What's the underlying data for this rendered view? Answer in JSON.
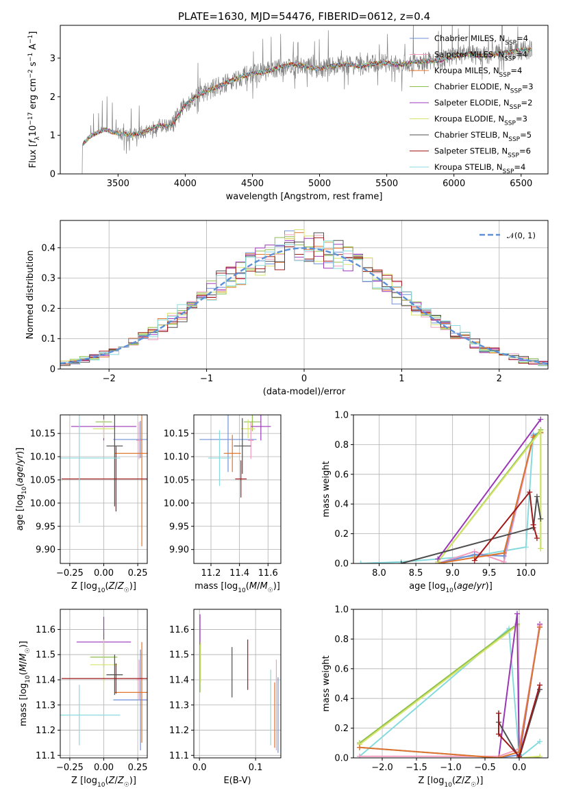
{
  "figure": {
    "title": "PLATE=1630, MJD=54476, FIBERID=0612, z=0.4"
  },
  "colors": {
    "chabrier_miles": "#6f8fd8",
    "salpeter_miles": "#f19bbf",
    "kroupa_miles": "#e0742a",
    "chabrier_elodie": "#8cbe4a",
    "salpeter_elodie": "#9b35b8",
    "kroupa_elodie": "#d6e36b",
    "chabrier_stelib": "#4d4d4d",
    "salpeter_stelib": "#a01818",
    "kroupa_stelib": "#86dadd",
    "data": "#808080",
    "gauss": "#5b8fd6"
  },
  "chart_data": [
    {
      "id": "spectrum",
      "type": "line",
      "title": "PLATE=1630, MJD=54476, FIBERID=0612, z=0.4",
      "xlabel": "wavelength [Angstrom, rest frame]",
      "ylabel": "Flux [f_λ 10^-17 erg cm^-2 s^-1 A^-1]",
      "xlim": [
        3070,
        6700
      ],
      "ylim": [
        0,
        3.85
      ],
      "xticks": [
        3500,
        4000,
        4500,
        5000,
        5500,
        6000,
        6500
      ],
      "yticks": [
        0,
        1,
        2,
        3
      ],
      "grid": false,
      "legend_position": "top-right",
      "continuum_x": [
        3230,
        3300,
        3400,
        3500,
        3600,
        3700,
        3800,
        3900,
        4000,
        4100,
        4200,
        4300,
        4400,
        4500,
        4600,
        4700,
        4800,
        4900,
        5000,
        5100,
        5200,
        5300,
        5400,
        5500,
        5600,
        5700,
        5800,
        5900,
        6000,
        6100,
        6200,
        6300,
        6400,
        6500,
        6580
      ],
      "continuum_y": [
        0.75,
        1.0,
        1.15,
        1.05,
        1.0,
        1.1,
        1.25,
        1.25,
        1.8,
        2.05,
        2.2,
        2.35,
        2.5,
        2.6,
        2.65,
        2.75,
        2.85,
        2.78,
        2.72,
        2.8,
        2.85,
        2.78,
        2.85,
        2.88,
        2.82,
        2.9,
        2.92,
        2.95,
        3.05,
        3.12,
        3.05,
        3.1,
        3.15,
        3.2,
        3.22
      ],
      "series": [
        {
          "name": "Chabrier MILES, N_SSP=4",
          "base": "Chabrier MILES, N",
          "sub": "SSP",
          "suffix": "=4",
          "color_key": "chabrier_miles"
        },
        {
          "name": "Salpeter MILES, N_SSP=4",
          "base": "Salpeter MILES, N",
          "sub": "SSP",
          "suffix": "=4",
          "color_key": "salpeter_miles"
        },
        {
          "name": "Kroupa MILES, N_SSP=4",
          "base": "Kroupa MILES, N",
          "sub": "SSP",
          "suffix": "=4",
          "color_key": "kroupa_miles"
        },
        {
          "name": "Chabrier ELODIE, N_SSP=3",
          "base": "Chabrier ELODIE, N",
          "sub": "SSP",
          "suffix": "=3",
          "color_key": "chabrier_elodie"
        },
        {
          "name": "Salpeter ELODIE, N_SSP=2",
          "base": "Salpeter ELODIE, N",
          "sub": "SSP",
          "suffix": "=2",
          "color_key": "salpeter_elodie"
        },
        {
          "name": "Kroupa ELODIE, N_SSP=3",
          "base": "Kroupa ELODIE, N",
          "sub": "SSP",
          "suffix": "=3",
          "color_key": "kroupa_elodie"
        },
        {
          "name": "Chabrier STELIB, N_SSP=5",
          "base": "Chabrier STELIB, N",
          "sub": "SSP",
          "suffix": "=5",
          "color_key": "chabrier_stelib"
        },
        {
          "name": "Salpeter STELIB, N_SSP=6",
          "base": "Salpeter STELIB, N",
          "sub": "SSP",
          "suffix": "=6",
          "color_key": "salpeter_stelib"
        },
        {
          "name": "Kroupa STELIB, N_SSP=4",
          "base": "Kroupa STELIB, N",
          "sub": "SSP",
          "suffix": "=4",
          "color_key": "kroupa_stelib"
        }
      ]
    },
    {
      "id": "residuals",
      "type": "bar",
      "xlabel": "(data-model)/error",
      "ylabel": "Normed distribution",
      "xlim": [
        -2.5,
        2.5
      ],
      "ylim": [
        0,
        0.49
      ],
      "xticks": [
        -2,
        -1,
        0,
        1,
        2
      ],
      "yticks": [
        0.0,
        0.1,
        0.2,
        0.3,
        0.4
      ],
      "grid": true,
      "legend_position": "top-right",
      "legend_label": "𝒩(0, 1)",
      "bin_width": 0.1,
      "bins_start": -2.5,
      "gauss_mean": 0,
      "gauss_sigma": 1
    },
    {
      "id": "age_vs_Z",
      "type": "scatter",
      "xlabel": "Z [log10(Z/Z☉)]",
      "ylabel": "age  [log10(age/yr)]",
      "xlim": [
        -0.32,
        0.32
      ],
      "ylim": [
        9.87,
        10.19
      ],
      "xticks": [
        -0.25,
        0.0,
        0.25
      ],
      "xtick_labels": [
        "−0.25",
        "0.00",
        "0.25"
      ],
      "yticks": [
        9.9,
        9.95,
        10.0,
        10.05,
        10.1,
        10.15
      ],
      "ytick_labels": [
        "9.90",
        "9.95",
        "10.00",
        "10.05",
        "10.10",
        "10.15"
      ],
      "grid": true,
      "points": [
        {
          "color_key": "chabrier_miles",
          "x": 0.27,
          "y": 10.137,
          "xerr": 0.2,
          "yerr": 0.04
        },
        {
          "color_key": "salpeter_miles",
          "x": 0.26,
          "y": 10.135,
          "xerr": 0.02,
          "yerr": 0.04
        },
        {
          "color_key": "kroupa_miles",
          "x": 0.28,
          "y": 10.107,
          "xerr": 0.2,
          "yerr": 0.2
        },
        {
          "color_key": "chabrier_elodie",
          "x": 0.0,
          "y": 10.175,
          "xerr": 0.06,
          "yerr": 0.02
        },
        {
          "color_key": "salpeter_elodie",
          "x": 0.0,
          "y": 10.165,
          "xerr": 0.24,
          "yerr": 0.03
        },
        {
          "color_key": "kroupa_elodie",
          "x": 0.0,
          "y": 10.16,
          "xerr": 0.08,
          "yerr": 0.02
        },
        {
          "color_key": "chabrier_stelib",
          "x": 0.08,
          "y": 10.123,
          "xerr": 0.06,
          "yerr": 0.13
        },
        {
          "color_key": "salpeter_stelib",
          "x": 0.09,
          "y": 10.052,
          "xerr": 0.4,
          "yerr": 0.07
        },
        {
          "color_key": "kroupa_stelib",
          "x": -0.18,
          "y": 10.097,
          "xerr": 0.3,
          "yerr": 0.14
        }
      ]
    },
    {
      "id": "age_vs_mass",
      "type": "scatter",
      "xlabel": "mass [log10(M/M☉)]",
      "ylabel": "",
      "xlim": [
        11.08,
        11.69
      ],
      "ylim": [
        9.87,
        10.19
      ],
      "xticks": [
        11.2,
        11.4,
        11.6
      ],
      "xtick_labels": [
        "11.2",
        "11.4",
        "11.6"
      ],
      "yticks": [
        9.9,
        9.95,
        10.0,
        10.05,
        10.1,
        10.15
      ],
      "ytick_labels": [
        "9.90",
        "9.95",
        "10.00",
        "10.05",
        "10.10",
        "10.15"
      ],
      "grid": true,
      "points": [
        {
          "color_key": "chabrier_miles",
          "x": 11.32,
          "y": 10.137,
          "xerr": 0.2,
          "yerr": 0.07
        },
        {
          "color_key": "salpeter_miles",
          "x": 11.48,
          "y": 10.135,
          "xerr": 0.02,
          "yerr": 0.04
        },
        {
          "color_key": "kroupa_miles",
          "x": 11.35,
          "y": 10.107,
          "xerr": 0.06,
          "yerr": 0.04
        },
        {
          "color_key": "chabrier_elodie",
          "x": 11.49,
          "y": 10.175,
          "xerr": 0.06,
          "yerr": 0.02
        },
        {
          "color_key": "salpeter_elodie",
          "x": 11.55,
          "y": 10.165,
          "xerr": 0.07,
          "yerr": 0.03
        },
        {
          "color_key": "kroupa_elodie",
          "x": 11.46,
          "y": 10.16,
          "xerr": 0.05,
          "yerr": 0.02
        },
        {
          "color_key": "chabrier_stelib",
          "x": 11.42,
          "y": 10.123,
          "xerr": 0.06,
          "yerr": 0.06
        },
        {
          "color_key": "salpeter_stelib",
          "x": 11.41,
          "y": 10.052,
          "xerr": 0.04,
          "yerr": 0.04
        },
        {
          "color_key": "kroupa_stelib",
          "x": 11.26,
          "y": 10.097,
          "xerr": 0.08,
          "yerr": 0.06
        }
      ]
    },
    {
      "id": "weight_vs_age",
      "type": "line",
      "xlabel": "age  [log10(age/yr)]",
      "ylabel": "mass weight",
      "xlim": [
        7.65,
        10.3
      ],
      "ylim": [
        0.0,
        1.0
      ],
      "xticks": [
        8.0,
        8.5,
        9.0,
        9.5,
        10.0
      ],
      "xtick_labels": [
        "8.0",
        "8.5",
        "9.0",
        "9.5",
        "10.0"
      ],
      "yticks": [
        0.0,
        0.2,
        0.4,
        0.6,
        0.8,
        1.0
      ],
      "ytick_labels": [
        "0.0",
        "0.2",
        "0.4",
        "0.6",
        "0.8",
        "1.0"
      ],
      "grid": true,
      "series": [
        {
          "color_key": "kroupa_stelib",
          "x": [
            7.75,
            8.3,
            9.3,
            10.0,
            10.1,
            10.2
          ],
          "y": [
            0.0,
            0.01,
            0.05,
            0.11,
            0.87,
            0.88
          ]
        },
        {
          "color_key": "salpeter_miles",
          "x": [
            8.8,
            9.3,
            9.7,
            10.1,
            10.2
          ],
          "y": [
            0.0,
            0.08,
            0.01,
            0.85,
            0.88
          ]
        },
        {
          "color_key": "chabrier_miles",
          "x": [
            8.8,
            9.3,
            9.7,
            10.1,
            10.2
          ],
          "y": [
            0.0,
            0.06,
            0.05,
            0.86,
            0.88
          ]
        },
        {
          "color_key": "kroupa_miles",
          "x": [
            8.8,
            9.3,
            9.7,
            10.1,
            10.2
          ],
          "y": [
            0.0,
            0.04,
            0.07,
            0.85,
            0.88
          ]
        },
        {
          "color_key": "chabrier_elodie",
          "x": [
            8.8,
            10.2,
            10.2
          ],
          "y": [
            0.01,
            0.9,
            0.1
          ]
        },
        {
          "color_key": "kroupa_elodie",
          "x": [
            8.8,
            10.2,
            10.2
          ],
          "y": [
            0.01,
            0.89,
            0.1
          ]
        },
        {
          "color_key": "salpeter_elodie",
          "x": [
            8.8,
            10.2
          ],
          "y": [
            0.03,
            0.97
          ]
        },
        {
          "color_key": "chabrier_stelib",
          "x": [
            8.3,
            10.1,
            10.15,
            10.2
          ],
          "y": [
            0.0,
            0.24,
            0.45,
            0.3
          ]
        },
        {
          "color_key": "salpeter_stelib",
          "x": [
            9.3,
            10.05,
            10.1,
            10.15
          ],
          "y": [
            0.02,
            0.48,
            0.26,
            0.17
          ]
        }
      ]
    },
    {
      "id": "mass_vs_Z",
      "type": "scatter",
      "xlabel": "Z [log10(Z/Z☉)]",
      "ylabel": "mass [log10(M/M☉)]",
      "xlim": [
        -0.32,
        0.32
      ],
      "ylim": [
        11.09,
        11.68
      ],
      "xticks": [
        -0.25,
        0.0,
        0.25
      ],
      "xtick_labels": [
        "−0.25",
        "0.00",
        "0.25"
      ],
      "yticks": [
        11.1,
        11.2,
        11.3,
        11.4,
        11.5,
        11.6
      ],
      "ytick_labels": [
        "11.1",
        "11.2",
        "11.3",
        "11.4",
        "11.5",
        "11.6"
      ],
      "grid": true,
      "points": [
        {
          "color_key": "chabrier_miles",
          "x": 0.27,
          "y": 11.32,
          "xerr": 0.2,
          "yerr": 0.2
        },
        {
          "color_key": "salpeter_miles",
          "x": 0.26,
          "y": 11.4,
          "xerr": 0.02,
          "yerr": 0.08
        },
        {
          "color_key": "kroupa_miles",
          "x": 0.28,
          "y": 11.35,
          "xerr": 0.2,
          "yerr": 0.2
        },
        {
          "color_key": "chabrier_elodie",
          "x": 0.0,
          "y": 11.49,
          "xerr": 0.1,
          "yerr": 0.1
        },
        {
          "color_key": "salpeter_elodie",
          "x": 0.0,
          "y": 11.55,
          "xerr": 0.2,
          "yerr": 0.1
        },
        {
          "color_key": "kroupa_elodie",
          "x": 0.0,
          "y": 11.46,
          "xerr": 0.1,
          "yerr": 0.1
        },
        {
          "color_key": "chabrier_stelib",
          "x": 0.08,
          "y": 11.42,
          "xerr": 0.06,
          "yerr": 0.08
        },
        {
          "color_key": "salpeter_stelib",
          "x": 0.09,
          "y": 11.405,
          "xerr": 0.4,
          "yerr": 0.06
        },
        {
          "color_key": "kroupa_stelib",
          "x": -0.18,
          "y": 11.26,
          "xerr": 0.3,
          "yerr": 0.12
        }
      ]
    },
    {
      "id": "mass_vs_ebv",
      "type": "scatter",
      "xlabel": "E(B-V)",
      "ylabel": "",
      "xlim": [
        -0.01,
        0.145
      ],
      "ylim": [
        11.09,
        11.68
      ],
      "xticks": [
        0.0,
        0.1
      ],
      "xtick_labels": [
        "0.0",
        "0.1"
      ],
      "yticks": [
        11.1,
        11.2,
        11.3,
        11.4,
        11.5,
        11.6
      ],
      "ytick_labels": [
        "11.1",
        "11.2",
        "11.3",
        "11.4",
        "11.5",
        "11.6"
      ],
      "grid": true,
      "points": [
        {
          "color_key": "chabrier_miles",
          "x": 0.14,
          "y": 11.26,
          "yerr": 0.15
        },
        {
          "color_key": "salpeter_miles",
          "x": 0.137,
          "y": 11.3,
          "yerr": 0.18
        },
        {
          "color_key": "kroupa_miles",
          "x": 0.134,
          "y": 11.26,
          "yerr": 0.13
        },
        {
          "color_key": "chabrier_elodie",
          "x": 0.001,
          "y": 11.45,
          "yerr": 0.1
        },
        {
          "color_key": "salpeter_elodie",
          "x": 0.001,
          "y": 11.6,
          "yerr": 0.06
        },
        {
          "color_key": "kroupa_elodie",
          "x": 0.002,
          "y": 11.47,
          "yerr": 0.08
        },
        {
          "color_key": "chabrier_stelib",
          "x": 0.058,
          "y": 11.43,
          "yerr": 0.1
        },
        {
          "color_key": "salpeter_stelib",
          "x": 0.086,
          "y": 11.46,
          "yerr": 0.1
        },
        {
          "color_key": "kroupa_stelib",
          "x": 0.127,
          "y": 11.29,
          "yerr": 0.15
        }
      ]
    },
    {
      "id": "weight_vs_Z",
      "type": "line",
      "xlabel": "Z [log10(Z/Z☉)]",
      "ylabel": "mass weight",
      "xlim": [
        -2.42,
        0.42
      ],
      "ylim": [
        0.0,
        1.0
      ],
      "xticks": [
        -2.0,
        -1.5,
        -1.0,
        -0.5,
        0.0
      ],
      "xtick_labels": [
        "−2.0",
        "−1.5",
        "−1.0",
        "−0.5",
        "0.0"
      ],
      "yticks": [
        0.0,
        0.2,
        0.4,
        0.6,
        0.8,
        1.0
      ],
      "ytick_labels": [
        "0.0",
        "0.2",
        "0.4",
        "0.6",
        "0.8",
        "1.0"
      ],
      "grid": true,
      "series": [
        {
          "color_key": "kroupa_stelib",
          "x": [
            -2.33,
            -0.15,
            0.0,
            0.3
          ],
          "y": [
            0.01,
            0.87,
            0.0,
            0.11
          ]
        },
        {
          "color_key": "chabrier_elodie",
          "x": [
            -2.33,
            -0.03,
            0.0,
            0.3
          ],
          "y": [
            0.1,
            0.9,
            0.0,
            0.0
          ]
        },
        {
          "color_key": "kroupa_elodie",
          "x": [
            -2.33,
            -0.03,
            0.0,
            0.3
          ],
          "y": [
            0.09,
            0.89,
            0.0,
            0.01
          ]
        },
        {
          "color_key": "salpeter_elodie",
          "x": [
            -0.3,
            -0.03,
            0.0,
            0.3
          ],
          "y": [
            0.0,
            0.97,
            0.0,
            0.9
          ]
        },
        {
          "color_key": "chabrier_miles",
          "x": [
            -2.33,
            -0.3,
            0.0,
            0.3
          ],
          "y": [
            0.07,
            0.0,
            0.02,
            0.88
          ]
        },
        {
          "color_key": "salpeter_miles",
          "x": [
            -2.33,
            -0.3,
            0.0,
            0.3
          ],
          "y": [
            0.01,
            0.01,
            0.06,
            0.89
          ]
        },
        {
          "color_key": "kroupa_miles",
          "x": [
            -2.33,
            -0.3,
            0.0,
            0.3
          ],
          "y": [
            0.07,
            0.0,
            0.04,
            0.88
          ]
        },
        {
          "color_key": "chabrier_stelib",
          "x": [
            -0.3,
            -0.3,
            0.0,
            0.3
          ],
          "y": [
            0.3,
            0.24,
            0.0,
            0.46
          ]
        },
        {
          "color_key": "salpeter_stelib",
          "x": [
            -0.3,
            -0.3,
            0.0,
            0.3
          ],
          "y": [
            0.3,
            0.16,
            0.01,
            0.49
          ]
        }
      ]
    }
  ]
}
